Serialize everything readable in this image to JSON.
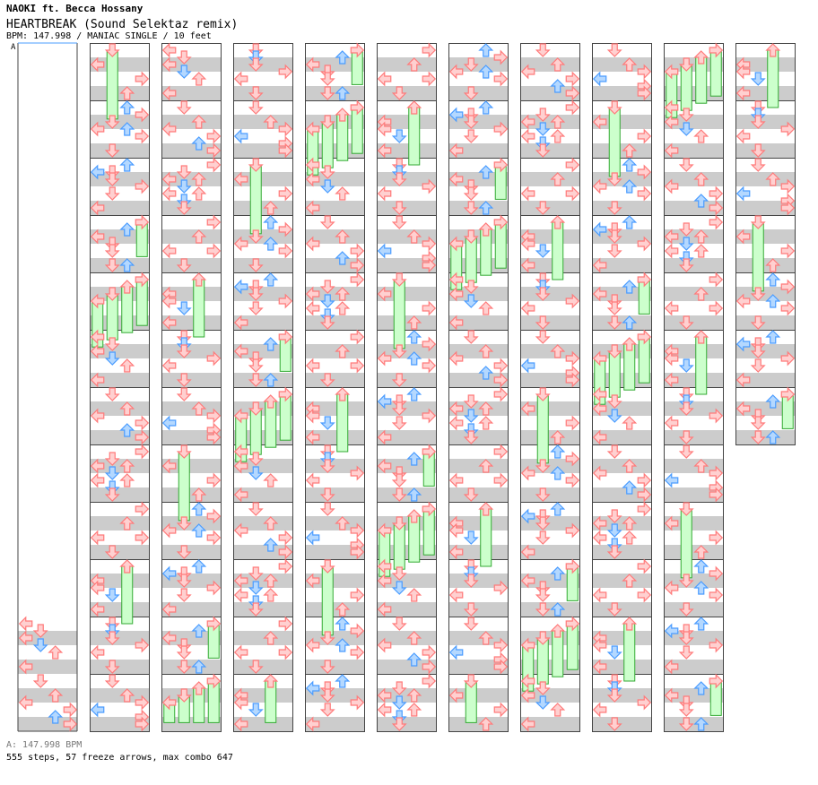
{
  "song": {
    "artist": "NAOKI ft. Becca Hossany",
    "title": "HEARTBREAK (Sound Selektaz remix)",
    "meta": "BPM: 147.998 / MANIAC SINGLE / 10 feet"
  },
  "bpm_marker": {
    "label": "A"
  },
  "footer": {
    "bpm_legend": "A: 147.998 BPM",
    "stats": "555 steps, 57 freeze arrows, max combo 647"
  },
  "colors": {
    "quarter_arrow": "#ff7a7a",
    "quarter_fill": "#ffd0d0",
    "eighth_arrow": "#4a9cff",
    "eighth_fill": "#b4d8ff",
    "sixteenth_arrow": "#e07ae0",
    "sixteenth_fill": "#ffd0ff",
    "freeze_body": "#ccffcc",
    "freeze_edge": "#33aa33",
    "stripe_gray": "#cccccc",
    "stripe_white": "#ffffff",
    "border": "#444444"
  },
  "chart_data": {
    "type": "table",
    "lanes": [
      "left",
      "down",
      "up",
      "right"
    ],
    "columns": 11,
    "measures_per_column": 12,
    "note_kinds": [
      "quarter",
      "eighth",
      "sixteenth",
      "freeze"
    ],
    "notes": [
      {
        "m": 1,
        "b": 0,
        "lane": 3,
        "k": "q"
      },
      {
        "m": 1,
        "b": 0.5,
        "lane": 1,
        "k": "q"
      },
      {
        "m": 1,
        "b": 1,
        "lane": 0,
        "k": "q"
      },
      {
        "m": 1,
        "b": 1,
        "lane": 2,
        "k": "q"
      },
      {
        "m": 1,
        "b": 1.5,
        "lane": 1,
        "k": "e"
      },
      {
        "m": 1,
        "b": 2,
        "lane": 0,
        "k": "q"
      },
      {
        "m": 1,
        "b": 2,
        "lane": 2,
        "k": "q"
      },
      {
        "m": 1,
        "b": 2.5,
        "lane": 1,
        "k": "e"
      },
      {
        "m": 1,
        "b": 3,
        "lane": 1,
        "k": "q"
      },
      {
        "m": 2,
        "b": 0,
        "lane": 3,
        "k": "q"
      },
      {
        "m": 2,
        "b": 1,
        "lane": 2,
        "k": "q"
      },
      {
        "m": 2,
        "b": 2,
        "lane": 0,
        "k": "q"
      },
      {
        "m": 2,
        "b": 2,
        "lane": 3,
        "k": "q"
      },
      {
        "m": 2,
        "b": 3,
        "lane": 1,
        "k": "q"
      },
      {
        "m": 3,
        "b": 0,
        "lane": 2,
        "k": "f",
        "len": 1
      },
      {
        "m": 3,
        "b": 1,
        "lane": 0,
        "k": "q"
      },
      {
        "m": 3,
        "b": 1.5,
        "lane": 0,
        "k": "q"
      },
      {
        "m": 3,
        "b": 2,
        "lane": 1,
        "k": "e"
      },
      {
        "m": 3,
        "b": 3,
        "lane": 0,
        "k": "q"
      },
      {
        "m": 4,
        "b": 0,
        "lane": 1,
        "k": "q"
      },
      {
        "m": 4,
        "b": 0.5,
        "lane": 1,
        "k": "e"
      },
      {
        "m": 4,
        "b": 1,
        "lane": 1,
        "k": "q"
      },
      {
        "m": 4,
        "b": 1.5,
        "lane": 3,
        "k": "q"
      },
      {
        "m": 4,
        "b": 2,
        "lane": 0,
        "k": "q"
      },
      {
        "m": 4,
        "b": 3,
        "lane": 1,
        "k": "q"
      },
      {
        "m": 5,
        "b": 0,
        "lane": 1,
        "k": "q"
      },
      {
        "m": 5,
        "b": 1,
        "lane": 2,
        "k": "q"
      },
      {
        "m": 5,
        "b": 1.5,
        "lane": 3,
        "k": "q"
      },
      {
        "m": 5,
        "b": 2,
        "lane": 0,
        "k": "e"
      },
      {
        "m": 5,
        "b": 2.5,
        "lane": 3,
        "k": "q"
      },
      {
        "m": 5,
        "b": 3,
        "lane": 3,
        "k": "q"
      },
      {
        "m": 6,
        "b": 0,
        "lane": 1,
        "k": "f",
        "len": 1.2
      },
      {
        "m": 6,
        "b": 1,
        "lane": 0,
        "k": "q"
      },
      {
        "m": 6,
        "b": 2,
        "lane": 3,
        "k": "q"
      },
      {
        "m": 6,
        "b": 3,
        "lane": 2,
        "k": "q"
      },
      {
        "m": 7,
        "b": 0,
        "lane": 2,
        "k": "e"
      },
      {
        "m": 7,
        "b": 0.5,
        "lane": 3,
        "k": "q"
      },
      {
        "m": 7,
        "b": 1,
        "lane": 1,
        "k": "q"
      },
      {
        "m": 7,
        "b": 1.5,
        "lane": 0,
        "k": "q"
      },
      {
        "m": 7,
        "b": 1.5,
        "lane": 2,
        "k": "e"
      },
      {
        "m": 7,
        "b": 2,
        "lane": 3,
        "k": "q"
      },
      {
        "m": 7,
        "b": 3,
        "lane": 1,
        "k": "q"
      },
      {
        "m": 8,
        "b": 0,
        "lane": 2,
        "k": "e"
      },
      {
        "m": 8,
        "b": 0.5,
        "lane": 0,
        "k": "e"
      },
      {
        "m": 8,
        "b": 0.5,
        "lane": 1,
        "k": "q"
      },
      {
        "m": 8,
        "b": 1,
        "lane": 1,
        "k": "q"
      },
      {
        "m": 8,
        "b": 1.5,
        "lane": 3,
        "k": "q"
      },
      {
        "m": 8,
        "b": 2,
        "lane": 1,
        "k": "q"
      },
      {
        "m": 8,
        "b": 3,
        "lane": 0,
        "k": "q"
      },
      {
        "m": 9,
        "b": 0,
        "lane": 3,
        "k": "f",
        "len": 0.6
      },
      {
        "m": 9,
        "b": 0.5,
        "lane": 2,
        "k": "e"
      },
      {
        "m": 9,
        "b": 1,
        "lane": 0,
        "k": "q"
      },
      {
        "m": 9,
        "b": 1.5,
        "lane": 1,
        "k": "q"
      },
      {
        "m": 9,
        "b": 2,
        "lane": 1,
        "k": "q"
      },
      {
        "m": 9,
        "b": 3,
        "lane": 1,
        "k": "q"
      },
      {
        "m": 9,
        "b": 3,
        "lane": 2,
        "k": "e"
      },
      {
        "m": 10,
        "b": 0,
        "lane": 3,
        "k": "f",
        "len": 0.8
      },
      {
        "m": 10,
        "b": 0.5,
        "lane": 2,
        "k": "f",
        "len": 0.8
      },
      {
        "m": 10,
        "b": 1,
        "lane": 1,
        "k": "f",
        "len": 0.8
      },
      {
        "m": 10,
        "b": 1.5,
        "lane": 0,
        "k": "f",
        "len": 0.8
      },
      {
        "m": 11,
        "b": 0,
        "lane": 0,
        "k": "q"
      },
      {
        "m": 11,
        "b": 0.5,
        "lane": 1,
        "k": "q"
      },
      {
        "m": 11,
        "b": 1,
        "lane": 0,
        "k": "q"
      },
      {
        "m": 11,
        "b": 1.5,
        "lane": 1,
        "k": "e"
      },
      {
        "m": 11,
        "b": 2,
        "lane": 2,
        "k": "q"
      },
      {
        "m": 11,
        "b": 3,
        "lane": 0,
        "k": "q"
      },
      {
        "m": 12,
        "b": 0,
        "lane": 1,
        "k": "q"
      },
      {
        "m": 12,
        "b": 1,
        "lane": 2,
        "k": "q"
      },
      {
        "m": 12,
        "b": 1.5,
        "lane": 0,
        "k": "q"
      },
      {
        "m": 12,
        "b": 2,
        "lane": 3,
        "k": "q"
      },
      {
        "m": 12,
        "b": 2.5,
        "lane": 2,
        "k": "e"
      },
      {
        "m": 12,
        "b": 3,
        "lane": 3,
        "k": "q"
      }
    ]
  }
}
